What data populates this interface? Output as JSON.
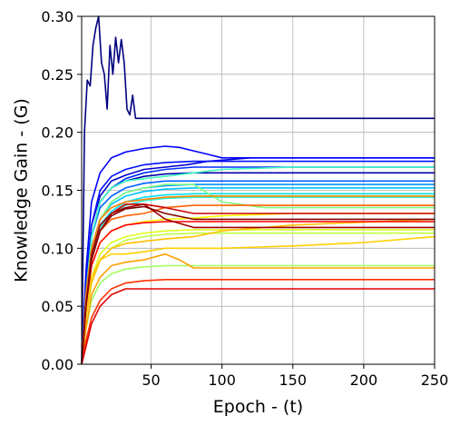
{
  "chart_data": {
    "type": "line",
    "title": "",
    "xlabel": "Epoch - (t)",
    "ylabel": "Knowledge Gain - (G)",
    "xlim": [
      1,
      250
    ],
    "ylim": [
      0.0,
      0.3
    ],
    "xticks": [
      50,
      100,
      150,
      200,
      250
    ],
    "xtick_labels": [
      "50",
      "100",
      "150",
      "200",
      "250"
    ],
    "yticks": [
      0.0,
      0.05,
      0.1,
      0.15,
      0.2,
      0.25,
      0.3
    ],
    "ytick_labels": [
      "0.00",
      "0.05",
      "0.10",
      "0.15",
      "0.20",
      "0.25",
      "0.30"
    ],
    "grid": true,
    "legend": "none",
    "colormap": "jet",
    "series": [
      {
        "color": "#000080",
        "x": [
          1,
          3,
          5,
          7,
          9,
          11,
          13,
          15,
          17,
          19,
          21,
          23,
          25,
          27,
          29,
          31,
          33,
          35,
          37,
          39,
          41,
          250
        ],
        "y": [
          0.0,
          0.2,
          0.245,
          0.24,
          0.275,
          0.29,
          0.3,
          0.26,
          0.25,
          0.22,
          0.275,
          0.25,
          0.282,
          0.26,
          0.28,
          0.26,
          0.22,
          0.215,
          0.232,
          0.212,
          0.212,
          0.212
        ]
      },
      {
        "color": "#0000cd",
        "x": [
          1,
          4,
          8,
          14,
          22,
          32,
          45,
          60,
          75,
          90,
          120,
          250
        ],
        "y": [
          0.0,
          0.07,
          0.12,
          0.145,
          0.158,
          0.163,
          0.168,
          0.17,
          0.172,
          0.175,
          0.178,
          0.178
        ]
      },
      {
        "color": "#0000ff",
        "x": [
          1,
          4,
          8,
          14,
          22,
          32,
          45,
          60,
          70,
          80,
          90,
          100,
          250
        ],
        "y": [
          0.0,
          0.08,
          0.14,
          0.165,
          0.178,
          0.183,
          0.186,
          0.188,
          0.187,
          0.184,
          0.181,
          0.178,
          0.178
        ]
      },
      {
        "color": "#0010ff",
        "x": [
          1,
          4,
          8,
          14,
          22,
          32,
          45,
          60,
          80,
          100,
          250
        ],
        "y": [
          0.0,
          0.07,
          0.12,
          0.15,
          0.162,
          0.168,
          0.172,
          0.174,
          0.175,
          0.175,
          0.175
        ]
      },
      {
        "color": "#0030ff",
        "x": [
          1,
          4,
          8,
          14,
          22,
          32,
          45,
          60,
          80,
          100,
          250
        ],
        "y": [
          0.0,
          0.06,
          0.11,
          0.14,
          0.152,
          0.16,
          0.165,
          0.168,
          0.17,
          0.17,
          0.17
        ]
      },
      {
        "color": "#0000aa",
        "x": [
          1,
          4,
          8,
          14,
          22,
          32,
          45,
          60,
          80,
          100,
          250
        ],
        "y": [
          0.0,
          0.06,
          0.11,
          0.14,
          0.152,
          0.158,
          0.162,
          0.164,
          0.165,
          0.165,
          0.165
        ]
      },
      {
        "color": "#0060ff",
        "x": [
          1,
          4,
          8,
          14,
          22,
          32,
          45,
          60,
          80,
          250
        ],
        "y": [
          0.0,
          0.06,
          0.11,
          0.135,
          0.145,
          0.152,
          0.156,
          0.158,
          0.158,
          0.158
        ]
      },
      {
        "color": "#0090ff",
        "x": [
          1,
          4,
          8,
          14,
          22,
          32,
          45,
          60,
          80,
          250
        ],
        "y": [
          0.0,
          0.05,
          0.1,
          0.125,
          0.14,
          0.148,
          0.152,
          0.154,
          0.155,
          0.155
        ]
      },
      {
        "color": "#00c0ff",
        "x": [
          1,
          4,
          8,
          14,
          22,
          32,
          45,
          60,
          80,
          250
        ],
        "y": [
          0.0,
          0.05,
          0.1,
          0.125,
          0.138,
          0.145,
          0.149,
          0.151,
          0.152,
          0.152
        ]
      },
      {
        "color": "#00e0ff",
        "x": [
          1,
          4,
          8,
          14,
          22,
          32,
          45,
          60,
          80,
          250
        ],
        "y": [
          0.0,
          0.05,
          0.095,
          0.12,
          0.132,
          0.14,
          0.144,
          0.146,
          0.147,
          0.147
        ]
      },
      {
        "color": "#20ffdf",
        "x": [
          1,
          4,
          8,
          14,
          22,
          32,
          45,
          60,
          80,
          250
        ],
        "y": [
          0.0,
          0.05,
          0.095,
          0.118,
          0.13,
          0.137,
          0.141,
          0.143,
          0.144,
          0.144
        ]
      },
      {
        "color": "#40ffbf",
        "x": [
          1,
          4,
          8,
          14,
          22,
          32,
          45,
          60,
          80,
          100,
          150,
          250
        ],
        "y": [
          0.0,
          0.06,
          0.11,
          0.14,
          0.152,
          0.158,
          0.16,
          0.162,
          0.165,
          0.168,
          0.17,
          0.17
        ]
      },
      {
        "color": "#80ff80",
        "x": [
          1,
          4,
          8,
          14,
          22,
          32,
          45,
          60,
          80,
          100,
          130,
          250
        ],
        "y": [
          0.0,
          0.05,
          0.1,
          0.125,
          0.14,
          0.148,
          0.152,
          0.155,
          0.155,
          0.14,
          0.135,
          0.135
        ]
      },
      {
        "color": "#9fff60",
        "x": [
          1,
          4,
          8,
          14,
          22,
          32,
          45,
          60,
          80,
          250
        ],
        "y": [
          0.0,
          0.03,
          0.055,
          0.07,
          0.078,
          0.082,
          0.084,
          0.085,
          0.085,
          0.085
        ]
      },
      {
        "color": "#c0ff40",
        "x": [
          1,
          4,
          8,
          14,
          22,
          32,
          45,
          60,
          80,
          250
        ],
        "y": [
          0.0,
          0.04,
          0.07,
          0.09,
          0.1,
          0.107,
          0.11,
          0.112,
          0.113,
          0.113
        ]
      },
      {
        "color": "#e0ff20",
        "x": [
          1,
          4,
          8,
          14,
          22,
          32,
          45,
          60,
          80,
          250
        ],
        "y": [
          0.0,
          0.04,
          0.075,
          0.095,
          0.105,
          0.11,
          0.113,
          0.115,
          0.116,
          0.116
        ]
      },
      {
        "color": "#ffff00",
        "x": [
          1,
          4,
          8,
          14,
          22,
          32,
          45,
          60,
          80,
          100,
          150,
          250
        ],
        "y": [
          0.0,
          0.05,
          0.085,
          0.105,
          0.115,
          0.12,
          0.123,
          0.125,
          0.126,
          0.128,
          0.13,
          0.13
        ]
      },
      {
        "color": "#ffd000",
        "x": [
          1,
          4,
          8,
          14,
          22,
          32,
          45,
          60,
          80,
          100,
          150,
          200,
          250
        ],
        "y": [
          0.0,
          0.04,
          0.075,
          0.09,
          0.095,
          0.095,
          0.097,
          0.1,
          0.1,
          0.1,
          0.102,
          0.105,
          0.11
        ]
      },
      {
        "color": "#ffc000",
        "x": [
          1,
          4,
          8,
          14,
          22,
          32,
          45,
          60,
          80,
          100,
          150,
          250
        ],
        "y": [
          0.0,
          0.04,
          0.07,
          0.09,
          0.1,
          0.104,
          0.106,
          0.108,
          0.11,
          0.115,
          0.12,
          0.125
        ]
      },
      {
        "color": "#ffa000",
        "x": [
          1,
          4,
          8,
          14,
          22,
          32,
          45,
          60,
          70,
          80,
          250
        ],
        "y": [
          0.0,
          0.03,
          0.06,
          0.075,
          0.085,
          0.088,
          0.09,
          0.095,
          0.09,
          0.083,
          0.083
        ]
      },
      {
        "color": "#ff8000",
        "x": [
          1,
          4,
          8,
          14,
          22,
          32,
          45,
          60,
          80,
          100,
          250
        ],
        "y": [
          0.0,
          0.06,
          0.1,
          0.125,
          0.135,
          0.14,
          0.142,
          0.144,
          0.145,
          0.145,
          0.145
        ]
      },
      {
        "color": "#ff6000",
        "x": [
          1,
          4,
          8,
          14,
          22,
          32,
          45,
          60,
          80,
          250
        ],
        "y": [
          0.0,
          0.05,
          0.09,
          0.115,
          0.125,
          0.128,
          0.13,
          0.135,
          0.137,
          0.137
        ]
      },
      {
        "color": "#ff3000",
        "x": [
          1,
          4,
          8,
          14,
          22,
          32,
          45,
          60,
          80,
          250
        ],
        "y": [
          0.0,
          0.02,
          0.04,
          0.055,
          0.065,
          0.07,
          0.072,
          0.073,
          0.073,
          0.073
        ]
      },
      {
        "color": "#ff0000",
        "x": [
          1,
          4,
          8,
          14,
          22,
          32,
          45,
          60,
          80,
          250
        ],
        "y": [
          0.0,
          0.05,
          0.085,
          0.105,
          0.115,
          0.12,
          0.122,
          0.123,
          0.123,
          0.123
        ]
      },
      {
        "color": "#e00000",
        "x": [
          1,
          4,
          8,
          14,
          22,
          32,
          45,
          60,
          80,
          250
        ],
        "y": [
          0.0,
          0.015,
          0.035,
          0.05,
          0.06,
          0.065,
          0.065,
          0.065,
          0.065,
          0.065
        ]
      },
      {
        "color": "#cc0000",
        "x": [
          1,
          4,
          8,
          14,
          22,
          32,
          45,
          60,
          80,
          250
        ],
        "y": [
          0.0,
          0.05,
          0.09,
          0.115,
          0.13,
          0.138,
          0.138,
          0.135,
          0.13,
          0.13
        ]
      },
      {
        "color": "#a00000",
        "x": [
          1,
          4,
          8,
          14,
          22,
          32,
          45,
          60,
          80,
          250
        ],
        "y": [
          0.0,
          0.05,
          0.095,
          0.12,
          0.13,
          0.135,
          0.138,
          0.125,
          0.118,
          0.118
        ]
      },
      {
        "color": "#800000",
        "x": [
          1,
          4,
          8,
          14,
          22,
          32,
          45,
          60,
          80,
          250
        ],
        "y": [
          0.0,
          0.05,
          0.09,
          0.115,
          0.128,
          0.134,
          0.136,
          0.13,
          0.125,
          0.125
        ]
      }
    ]
  }
}
